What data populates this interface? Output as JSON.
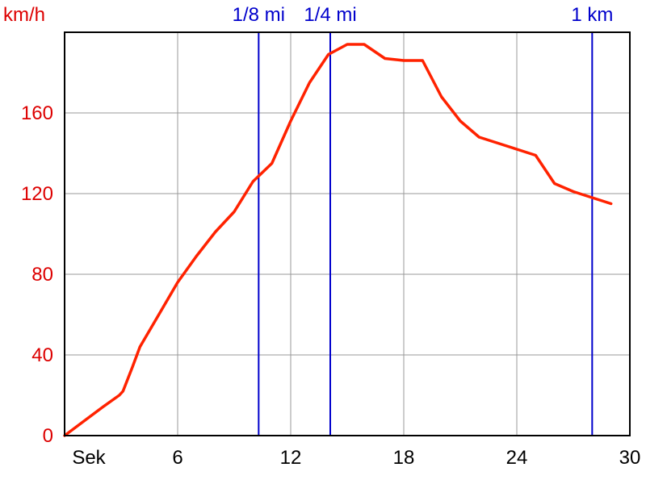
{
  "chart_data": {
    "type": "line",
    "title": "",
    "xlabel": "Sek",
    "ylabel": "km/h",
    "xlim": [
      0,
      30
    ],
    "ylim": [
      0,
      200
    ],
    "x_ticks": [
      6,
      12,
      18,
      24,
      30
    ],
    "y_ticks": [
      0,
      40,
      80,
      120,
      160
    ],
    "grid": true,
    "series": [
      {
        "name": "",
        "color": "#ff2200",
        "x": [
          0,
          1,
          2,
          2.9,
          3.1,
          3.6,
          4.0,
          5.0,
          6.0,
          7.0,
          8.0,
          9.0,
          10.0,
          11.0,
          12.0,
          13.0,
          14.0,
          15.0,
          15.9,
          17.0,
          18.0,
          19.0,
          20.0,
          21.0,
          22.0,
          23.0,
          24.0,
          25.0,
          26.0,
          27.0,
          28.0,
          29.0
        ],
        "y": [
          0,
          7,
          14,
          20,
          22,
          34,
          44,
          60,
          76,
          89,
          101,
          111,
          126,
          135,
          156,
          175,
          189,
          194,
          194,
          187,
          186,
          186,
          168,
          156,
          148,
          145,
          142,
          139,
          125,
          121,
          118,
          115
        ]
      }
    ],
    "markers": [
      {
        "label": "1/8 mi",
        "x": 10.3,
        "color": "#0000cc"
      },
      {
        "label": "1/4 mi",
        "x": 14.1,
        "color": "#0000cc"
      },
      {
        "label": "1 km",
        "x": 28.0,
        "color": "#0000cc"
      }
    ],
    "colors": {
      "axis_text": "#dd0000",
      "grid": "#999999",
      "marker": "#0000cc",
      "line": "#ff2200"
    }
  }
}
